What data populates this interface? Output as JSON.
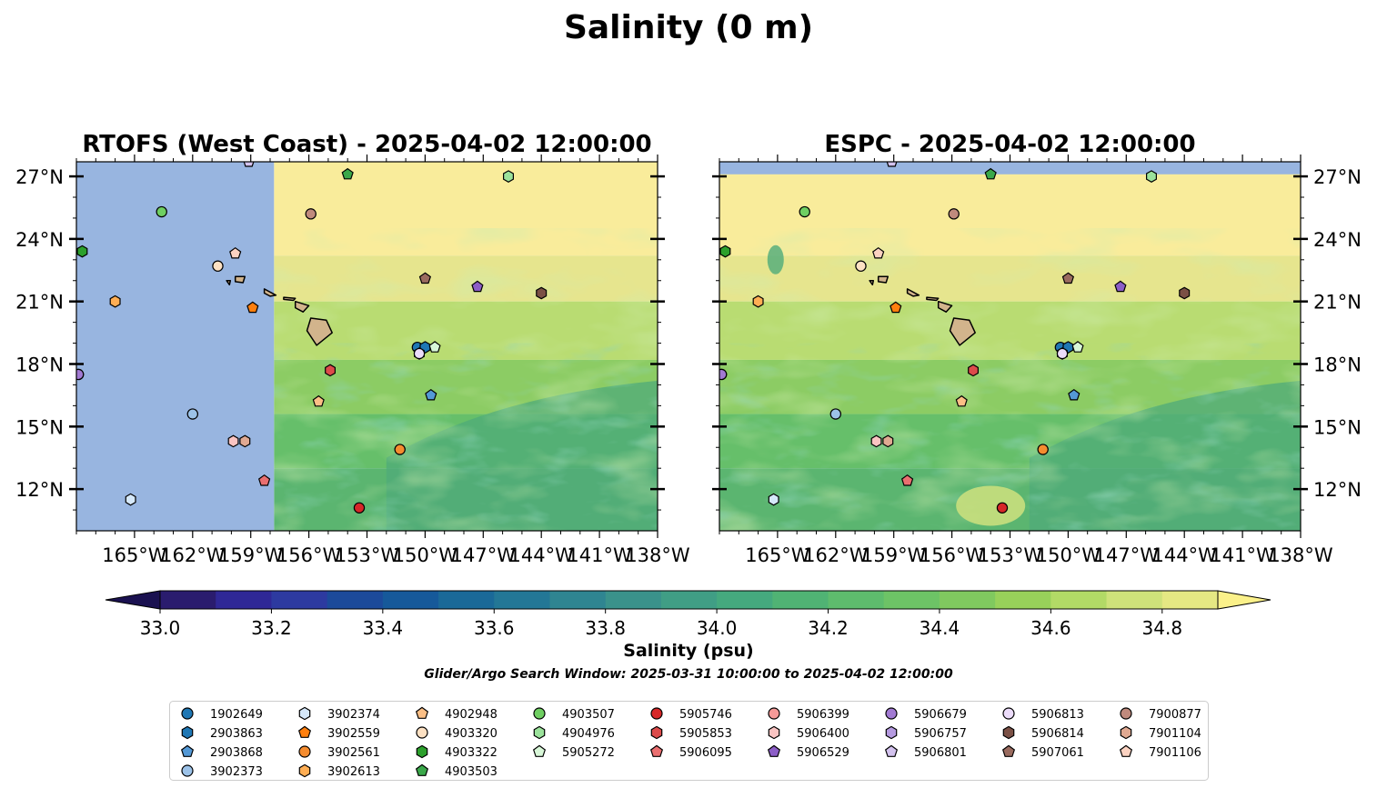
{
  "figure": {
    "suptitle": "Salinity (0 m)",
    "colorbar_label": "Salinity (psu)",
    "search_window": "Glider/Argo Search Window: 2025-03-31 10:00:00 to 2025-04-02 12:00:00"
  },
  "chart_data": {
    "type": "heatmap",
    "variable": "sea surface salinity",
    "panels": [
      {
        "title": "RTOFS (West Coast) - 2025-04-02 12:00:00",
        "model_domain_starts_lon": -157.8,
        "note": "region west of the model domain edge shown as flat blue (no data)"
      },
      {
        "title": "ESPC - 2025-04-02 12:00:00",
        "note": "data over entire map; northern strip above ~27.3N shown blue"
      }
    ],
    "xlim": [
      -168,
      -138
    ],
    "ylim": [
      10,
      27.7
    ],
    "x_ticks": [
      -165,
      -162,
      -159,
      -156,
      -153,
      -150,
      -147,
      -144,
      -141,
      -138
    ],
    "x_tick_labels": [
      "165°W",
      "162°W",
      "159°W",
      "156°W",
      "153°W",
      "150°W",
      "147°W",
      "144°W",
      "141°W",
      "138°W"
    ],
    "y_ticks": [
      12,
      15,
      18,
      21,
      24,
      27
    ],
    "y_tick_labels": [
      "12°N",
      "15°N",
      "18°N",
      "21°N",
      "24°N",
      "27°N"
    ],
    "colorbar": {
      "min": 33.0,
      "max": 34.9,
      "step": 0.1,
      "extend": "both",
      "cmap": "summer-viridis-like (dark purple to pale yellow)",
      "tick_values": [
        33.0,
        33.2,
        33.4,
        33.6,
        33.8,
        34.0,
        34.2,
        34.4,
        34.6,
        34.8
      ],
      "tick_labels": [
        "33.0",
        "33.2",
        "33.4",
        "33.6",
        "33.8",
        "34.0",
        "34.2",
        "34.4",
        "34.6",
        "34.8"
      ],
      "colors": [
        "#2a1c6e",
        "#2f2896",
        "#2d3aa0",
        "#1c4a9a",
        "#16599a",
        "#1a6998",
        "#237796",
        "#2f8591",
        "#3a928b",
        "#409e85",
        "#45a97e",
        "#50b374",
        "#5ebc6d",
        "#6dc366",
        "#80c95f",
        "#98d15a",
        "#b2da66",
        "#cee27a",
        "#e5e883"
      ]
    },
    "floats": [
      {
        "id": "1902649",
        "marker": "circle",
        "color": "#1f77b4",
        "lon": -150.4,
        "lat": 18.8
      },
      {
        "id": "2903863",
        "marker": "hexagon",
        "color": "#1f77b4",
        "lon": -150.0,
        "lat": 18.8
      },
      {
        "id": "2903868",
        "marker": "pentagon",
        "color": "#5499d6",
        "lon": -149.7,
        "lat": 16.5
      },
      {
        "id": "3902373",
        "marker": "circle",
        "color": "#9cc2e8",
        "lon": -162.0,
        "lat": 15.6
      },
      {
        "id": "3902374",
        "marker": "hexagon",
        "color": "#d5e8fa",
        "lon": -165.2,
        "lat": 11.5
      },
      {
        "id": "3902559",
        "marker": "pentagon",
        "color": "#ff7f0e",
        "lon": -158.9,
        "lat": 20.7
      },
      {
        "id": "3902561",
        "marker": "circle",
        "color": "#f58c2f",
        "lon": -151.3,
        "lat": 13.9
      },
      {
        "id": "3902613",
        "marker": "hexagon",
        "color": "#ffae54",
        "lon": -166.0,
        "lat": 21.0
      },
      {
        "id": "4902948",
        "marker": "pentagon",
        "color": "#fbbf86",
        "lon": -155.5,
        "lat": 16.2
      },
      {
        "id": "4903320",
        "marker": "circle",
        "color": "#fde1c3",
        "lon": -160.7,
        "lat": 22.7
      },
      {
        "id": "4903322",
        "marker": "hexagon",
        "color": "#2ca02c",
        "lon": -167.7,
        "lat": 23.4
      },
      {
        "id": "4903503",
        "marker": "pentagon",
        "color": "#3aa84a",
        "lon": -154.0,
        "lat": 27.1
      },
      {
        "id": "4903507",
        "marker": "circle",
        "color": "#6fcf62",
        "lon": -163.6,
        "lat": 25.3
      },
      {
        "id": "4904976",
        "marker": "hexagon",
        "color": "#9be29b",
        "lon": -145.7,
        "lat": 27.0
      },
      {
        "id": "5905272",
        "marker": "pentagon",
        "color": "#d8f7d8",
        "lon": -149.5,
        "lat": 18.8
      },
      {
        "id": "5905746",
        "marker": "circle",
        "color": "#d62728",
        "lon": -153.4,
        "lat": 11.1
      },
      {
        "id": "5905853",
        "marker": "hexagon",
        "color": "#dc4b4b",
        "lon": -154.9,
        "lat": 17.7
      },
      {
        "id": "5906095",
        "marker": "pentagon",
        "color": "#ea6f70",
        "lon": -158.3,
        "lat": 12.4
      },
      {
        "id": "5906399",
        "marker": "circle",
        "color": "#f59a98",
        "lon": -167.9,
        "lat": 17.5
      },
      {
        "id": "5906400",
        "marker": "hexagon",
        "color": "#fac4c2",
        "lon": -159.9,
        "lat": 14.3
      },
      {
        "id": "5906529",
        "marker": "pentagon",
        "color": "#8c5ec7",
        "lon": -147.3,
        "lat": 21.7
      },
      {
        "id": "5906679",
        "marker": "circle",
        "color": "#a27ad3",
        "lon": -167.9,
        "lat": 17.5
      },
      {
        "id": "5906757",
        "marker": "hexagon",
        "color": "#b59ae0",
        "lon": -150.3,
        "lat": 18.5
      },
      {
        "id": "5906801",
        "marker": "pentagon",
        "color": "#d3c2ee",
        "lon": -159.1,
        "lat": 27.7
      },
      {
        "id": "5906813",
        "marker": "circle",
        "color": "#ecdcfa",
        "lon": -150.3,
        "lat": 18.5
      },
      {
        "id": "5906814",
        "marker": "hexagon",
        "color": "#7b5045",
        "lon": -144.0,
        "lat": 21.4
      },
      {
        "id": "5907061",
        "marker": "pentagon",
        "color": "#9a6b5f",
        "lon": -150.0,
        "lat": 22.1
      },
      {
        "id": "7900877",
        "marker": "circle",
        "color": "#c08a7d",
        "lon": -155.9,
        "lat": 25.2
      },
      {
        "id": "7901104",
        "marker": "hexagon",
        "color": "#e0a992",
        "lon": -159.3,
        "lat": 14.3
      },
      {
        "id": "7901106",
        "marker": "pentagon",
        "color": "#fbd2c1",
        "lon": -159.8,
        "lat": 23.3
      }
    ],
    "legend_columns": [
      [
        "1902649",
        "2903863",
        "2903868",
        "3902373"
      ],
      [
        "3902374",
        "3902559",
        "3902561",
        "3902613"
      ],
      [
        "4902948",
        "4903320",
        "4903322",
        "4903503"
      ],
      [
        "4903507",
        "4904976",
        "5905272"
      ],
      [
        "5905746",
        "5905853",
        "5906095"
      ],
      [
        "5906399",
        "5906400",
        "5906529"
      ],
      [
        "5906679",
        "5906757",
        "5906801"
      ],
      [
        "5906813",
        "5906814",
        "5907061"
      ],
      [
        "7900877",
        "7901104",
        "7901106"
      ]
    ],
    "land_color": "#d2b48c",
    "nodata_color": "#98b5e0"
  }
}
